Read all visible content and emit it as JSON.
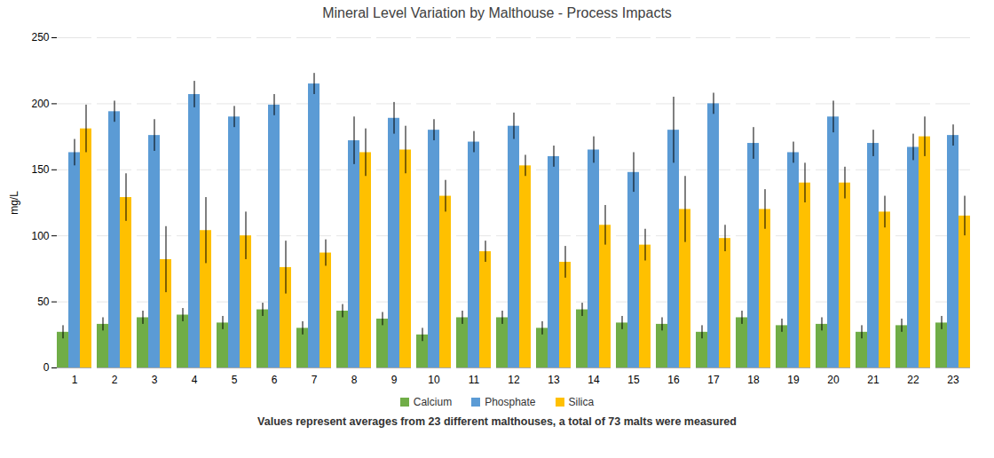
{
  "chart_data": {
    "type": "bar",
    "title": "Mineral Level Variation by Malthouse - Process Impacts",
    "ylabel": "mg/L",
    "footnote": "Values represent averages from 23 different malthouses, a total of 73  malts were measured",
    "categories": [
      1,
      2,
      3,
      4,
      5,
      6,
      7,
      8,
      9,
      10,
      11,
      12,
      13,
      14,
      15,
      16,
      17,
      18,
      19,
      20,
      21,
      22,
      23
    ],
    "series": [
      {
        "name": "Calcium",
        "color": "#70ad47",
        "values": [
          27,
          33,
          38,
          40,
          34,
          44,
          30,
          43,
          37,
          25,
          38,
          38,
          30,
          44,
          34,
          33,
          27,
          38,
          32,
          33,
          27,
          32,
          34
        ],
        "errors": [
          5,
          5,
          5,
          5,
          5,
          5,
          5,
          5,
          5,
          5,
          5,
          5,
          5,
          5,
          5,
          5,
          5,
          5,
          5,
          5,
          5,
          5,
          5
        ]
      },
      {
        "name": "Phosphate",
        "color": "#5b9bd5",
        "values": [
          163,
          194,
          176,
          207,
          190,
          199,
          215,
          172,
          189,
          180,
          171,
          183,
          160,
          165,
          148,
          180,
          200,
          170,
          163,
          190,
          170,
          167,
          176
        ],
        "errors": [
          10,
          8,
          12,
          10,
          8,
          8,
          8,
          18,
          12,
          8,
          8,
          10,
          8,
          10,
          15,
          25,
          8,
          12,
          8,
          12,
          10,
          10,
          8
        ]
      },
      {
        "name": "Silica",
        "color": "#ffc000",
        "values": [
          181,
          129,
          82,
          104,
          100,
          76,
          87,
          163,
          165,
          130,
          88,
          153,
          80,
          108,
          93,
          120,
          98,
          120,
          140,
          140,
          118,
          175,
          115
        ],
        "errors": [
          18,
          18,
          25,
          25,
          18,
          20,
          10,
          18,
          18,
          12,
          8,
          8,
          12,
          15,
          12,
          25,
          10,
          15,
          15,
          12,
          12,
          15,
          15
        ]
      }
    ],
    "ylim": [
      0,
      250
    ],
    "yticks": [
      0,
      50,
      100,
      150,
      200,
      250
    ],
    "grid": true,
    "legend": "bottom"
  }
}
